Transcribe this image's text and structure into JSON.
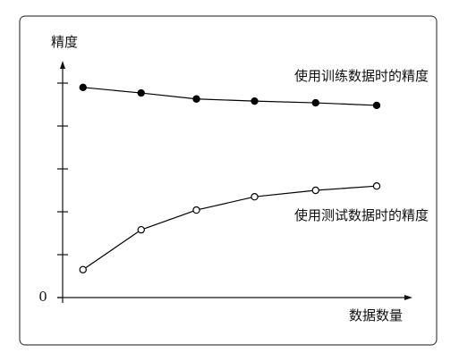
{
  "chart_data": {
    "type": "line",
    "y_label": "精度",
    "x_label": "数据数量",
    "x": [
      0.35,
      1.35,
      2.3,
      3.3,
      4.35,
      5.4
    ],
    "xlim": [
      0,
      6
    ],
    "ylim": [
      0,
      5.5
    ],
    "yticks": [
      0
    ],
    "yminorticks": [
      1,
      2,
      3,
      4,
      5
    ],
    "series": [
      {
        "name": "使用训练数据时的精度",
        "color": "#000000",
        "marker": "filled",
        "values": [
          4.9,
          4.77,
          4.63,
          4.58,
          4.54,
          4.48
        ]
      },
      {
        "name": "使用测试数据时的精度",
        "color": "#000000",
        "marker": "open",
        "values": [
          0.65,
          1.58,
          2.04,
          2.35,
          2.5,
          2.6
        ]
      }
    ]
  }
}
